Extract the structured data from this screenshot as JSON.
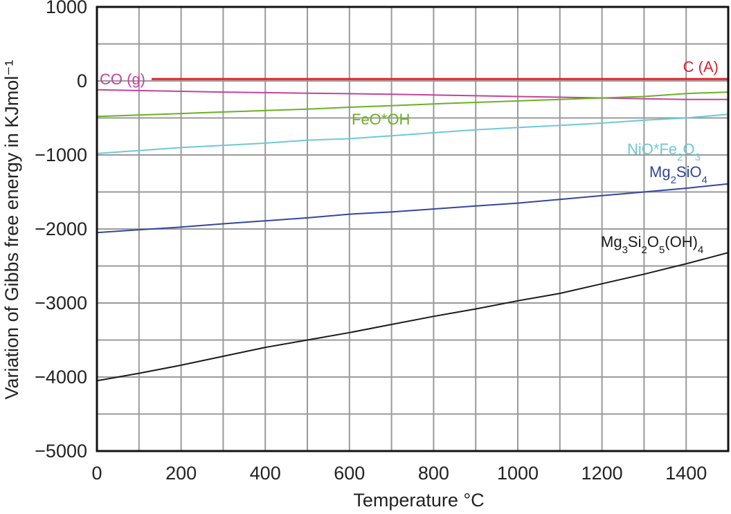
{
  "chart_data": {
    "type": "line",
    "title": "",
    "xlabel": "Temperature °C",
    "ylabel": "Variation of Gibbs free energy in KJmol⁻¹",
    "xlim": [
      0,
      1500
    ],
    "ylim": [
      -5000,
      1000
    ],
    "x_ticks": [
      0,
      200,
      400,
      600,
      800,
      1000,
      1200,
      1400
    ],
    "y_ticks": [
      1000,
      0,
      -1000,
      -2000,
      -3000,
      -4000,
      -5000
    ],
    "y_tick_labels": [
      "1000",
      "0",
      "−1000",
      "−2000",
      "−3000",
      "−4000",
      "−5000"
    ],
    "grid": true,
    "legend": "inline labels",
    "series": [
      {
        "name": "C (A)",
        "color": "#e0202a",
        "x": [
          130,
          1500
        ],
        "values": [
          25,
          25
        ],
        "label": [
          {
            "text": "C (A)"
          }
        ]
      },
      {
        "name": "CO (g)",
        "color": "#c2439b",
        "x": [
          0,
          100,
          200,
          300,
          400,
          500,
          600,
          700,
          800,
          900,
          1000,
          1100,
          1200,
          1300,
          1400,
          1500
        ],
        "values": [
          -120,
          -130,
          -140,
          -150,
          -158,
          -165,
          -172,
          -180,
          -190,
          -200,
          -210,
          -220,
          -230,
          -240,
          -250,
          -250
        ],
        "label": [
          {
            "text": "CO (g)"
          }
        ]
      },
      {
        "name": "FeO*OH",
        "color": "#6ab023",
        "x": [
          0,
          100,
          200,
          300,
          400,
          500,
          600,
          700,
          800,
          900,
          1000,
          1100,
          1200,
          1300,
          1400,
          1500
        ],
        "values": [
          -480,
          -460,
          -440,
          -420,
          -400,
          -380,
          -355,
          -335,
          -310,
          -290,
          -270,
          -250,
          -230,
          -210,
          -170,
          -150
        ],
        "label": [
          {
            "text": "FeO*OH"
          }
        ]
      },
      {
        "name": "NiO*Fe₂O₃",
        "color": "#6cc9d6",
        "x": [
          0,
          100,
          200,
          300,
          400,
          500,
          600,
          700,
          800,
          900,
          1000,
          1100,
          1200,
          1300,
          1400,
          1500
        ],
        "values": [
          -980,
          -940,
          -900,
          -870,
          -840,
          -800,
          -780,
          -740,
          -700,
          -660,
          -630,
          -600,
          -570,
          -530,
          -500,
          -450
        ],
        "label": [
          {
            "text": "NiO*Fe",
            "sub": false
          },
          {
            "text": "2",
            "sub": true
          },
          {
            "text": "O",
            "sub": false
          },
          {
            "text": "3",
            "sub": true
          }
        ]
      },
      {
        "name": "Mg₂SiO₄",
        "color": "#3246a0",
        "x": [
          0,
          100,
          200,
          300,
          400,
          500,
          600,
          700,
          800,
          900,
          1000,
          1100,
          1200,
          1300,
          1400,
          1500
        ],
        "values": [
          -2050,
          -2010,
          -1975,
          -1930,
          -1890,
          -1850,
          -1800,
          -1770,
          -1730,
          -1690,
          -1650,
          -1600,
          -1550,
          -1500,
          -1450,
          -1390
        ],
        "label": [
          {
            "text": "Mg",
            "sub": false
          },
          {
            "text": "2",
            "sub": true
          },
          {
            "text": "SiO",
            "sub": false
          },
          {
            "text": "4",
            "sub": true
          }
        ]
      },
      {
        "name": "Mg₃Si₂O₅(OH)₄",
        "color": "#1a1a1a",
        "x": [
          0,
          100,
          200,
          300,
          400,
          500,
          600,
          700,
          800,
          900,
          1000,
          1100,
          1200,
          1300,
          1400,
          1500
        ],
        "values": [
          -4050,
          -3950,
          -3840,
          -3720,
          -3600,
          -3500,
          -3400,
          -3290,
          -3180,
          -3080,
          -2970,
          -2870,
          -2740,
          -2610,
          -2470,
          -2320
        ],
        "label": [
          {
            "text": "Mg",
            "sub": false
          },
          {
            "text": "3",
            "sub": true
          },
          {
            "text": "Si",
            "sub": false
          },
          {
            "text": "2",
            "sub": true
          },
          {
            "text": "O",
            "sub": false
          },
          {
            "text": "5",
            "sub": true
          },
          {
            "text": "(OH)",
            "sub": false
          },
          {
            "text": "4",
            "sub": true
          }
        ]
      }
    ]
  }
}
